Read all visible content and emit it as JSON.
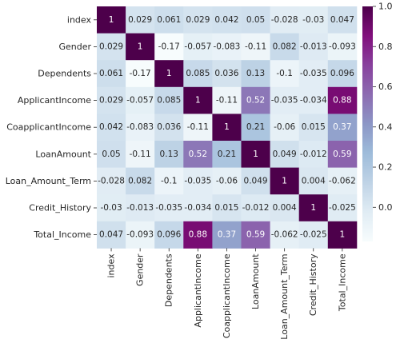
{
  "chart_data": {
    "type": "heatmap",
    "title": "",
    "xlabel": "",
    "ylabel": "",
    "colormap": "BuPu",
    "colormap_stops": [
      "#f7fcfd",
      "#e0ecf4",
      "#bfd3e6",
      "#9ebcda",
      "#8c96c6",
      "#8c6bb1",
      "#88419d",
      "#810f7c",
      "#4d004b"
    ],
    "vmin": -0.17,
    "vmax": 1,
    "rows": [
      "index",
      "Gender",
      "Dependents",
      "ApplicantIncome",
      "CoapplicantIncome",
      "LoanAmount",
      "Loan_Amount_Term",
      "Credit_History",
      "Total_Income"
    ],
    "columns": [
      "index",
      "Gender",
      "Dependents",
      "ApplicantIncome",
      "CoapplicantIncome",
      "LoanAmount",
      "Loan_Amount_Term",
      "Credit_History",
      "Total_Income"
    ],
    "values": [
      [
        1,
        0.029,
        0.061,
        0.029,
        0.042,
        0.05,
        -0.028,
        -0.03,
        0.047
      ],
      [
        0.029,
        1,
        -0.17,
        -0.057,
        -0.083,
        -0.11,
        0.082,
        -0.013,
        -0.093
      ],
      [
        0.061,
        -0.17,
        1,
        0.085,
        0.036,
        0.13,
        -0.1,
        -0.035,
        0.096
      ],
      [
        0.029,
        -0.057,
        0.085,
        1,
        -0.11,
        0.52,
        -0.035,
        -0.034,
        0.88
      ],
      [
        0.042,
        -0.083,
        0.036,
        -0.11,
        1,
        0.21,
        -0.06,
        0.015,
        0.37
      ],
      [
        0.05,
        -0.11,
        0.13,
        0.52,
        0.21,
        1,
        0.049,
        -0.012,
        0.59
      ],
      [
        -0.028,
        0.082,
        -0.1,
        -0.035,
        -0.06,
        0.049,
        1,
        0.004,
        -0.062
      ],
      [
        -0.03,
        -0.013,
        -0.035,
        -0.034,
        0.015,
        -0.012,
        0.004,
        1,
        -0.025
      ],
      [
        0.047,
        -0.093,
        0.096,
        0.88,
        0.37,
        0.59,
        -0.062,
        -0.025,
        1
      ]
    ],
    "colorbar_ticks": [
      0.0,
      0.2,
      0.4,
      0.6,
      0.8,
      1.0
    ],
    "colorbar_tick_labels": [
      "0.0",
      "0.2",
      "0.4",
      "0.6",
      "0.8",
      "1.0"
    ],
    "annotation_text_colors": {
      "light_background": "#262626",
      "dark_background": "#ffffff"
    }
  }
}
